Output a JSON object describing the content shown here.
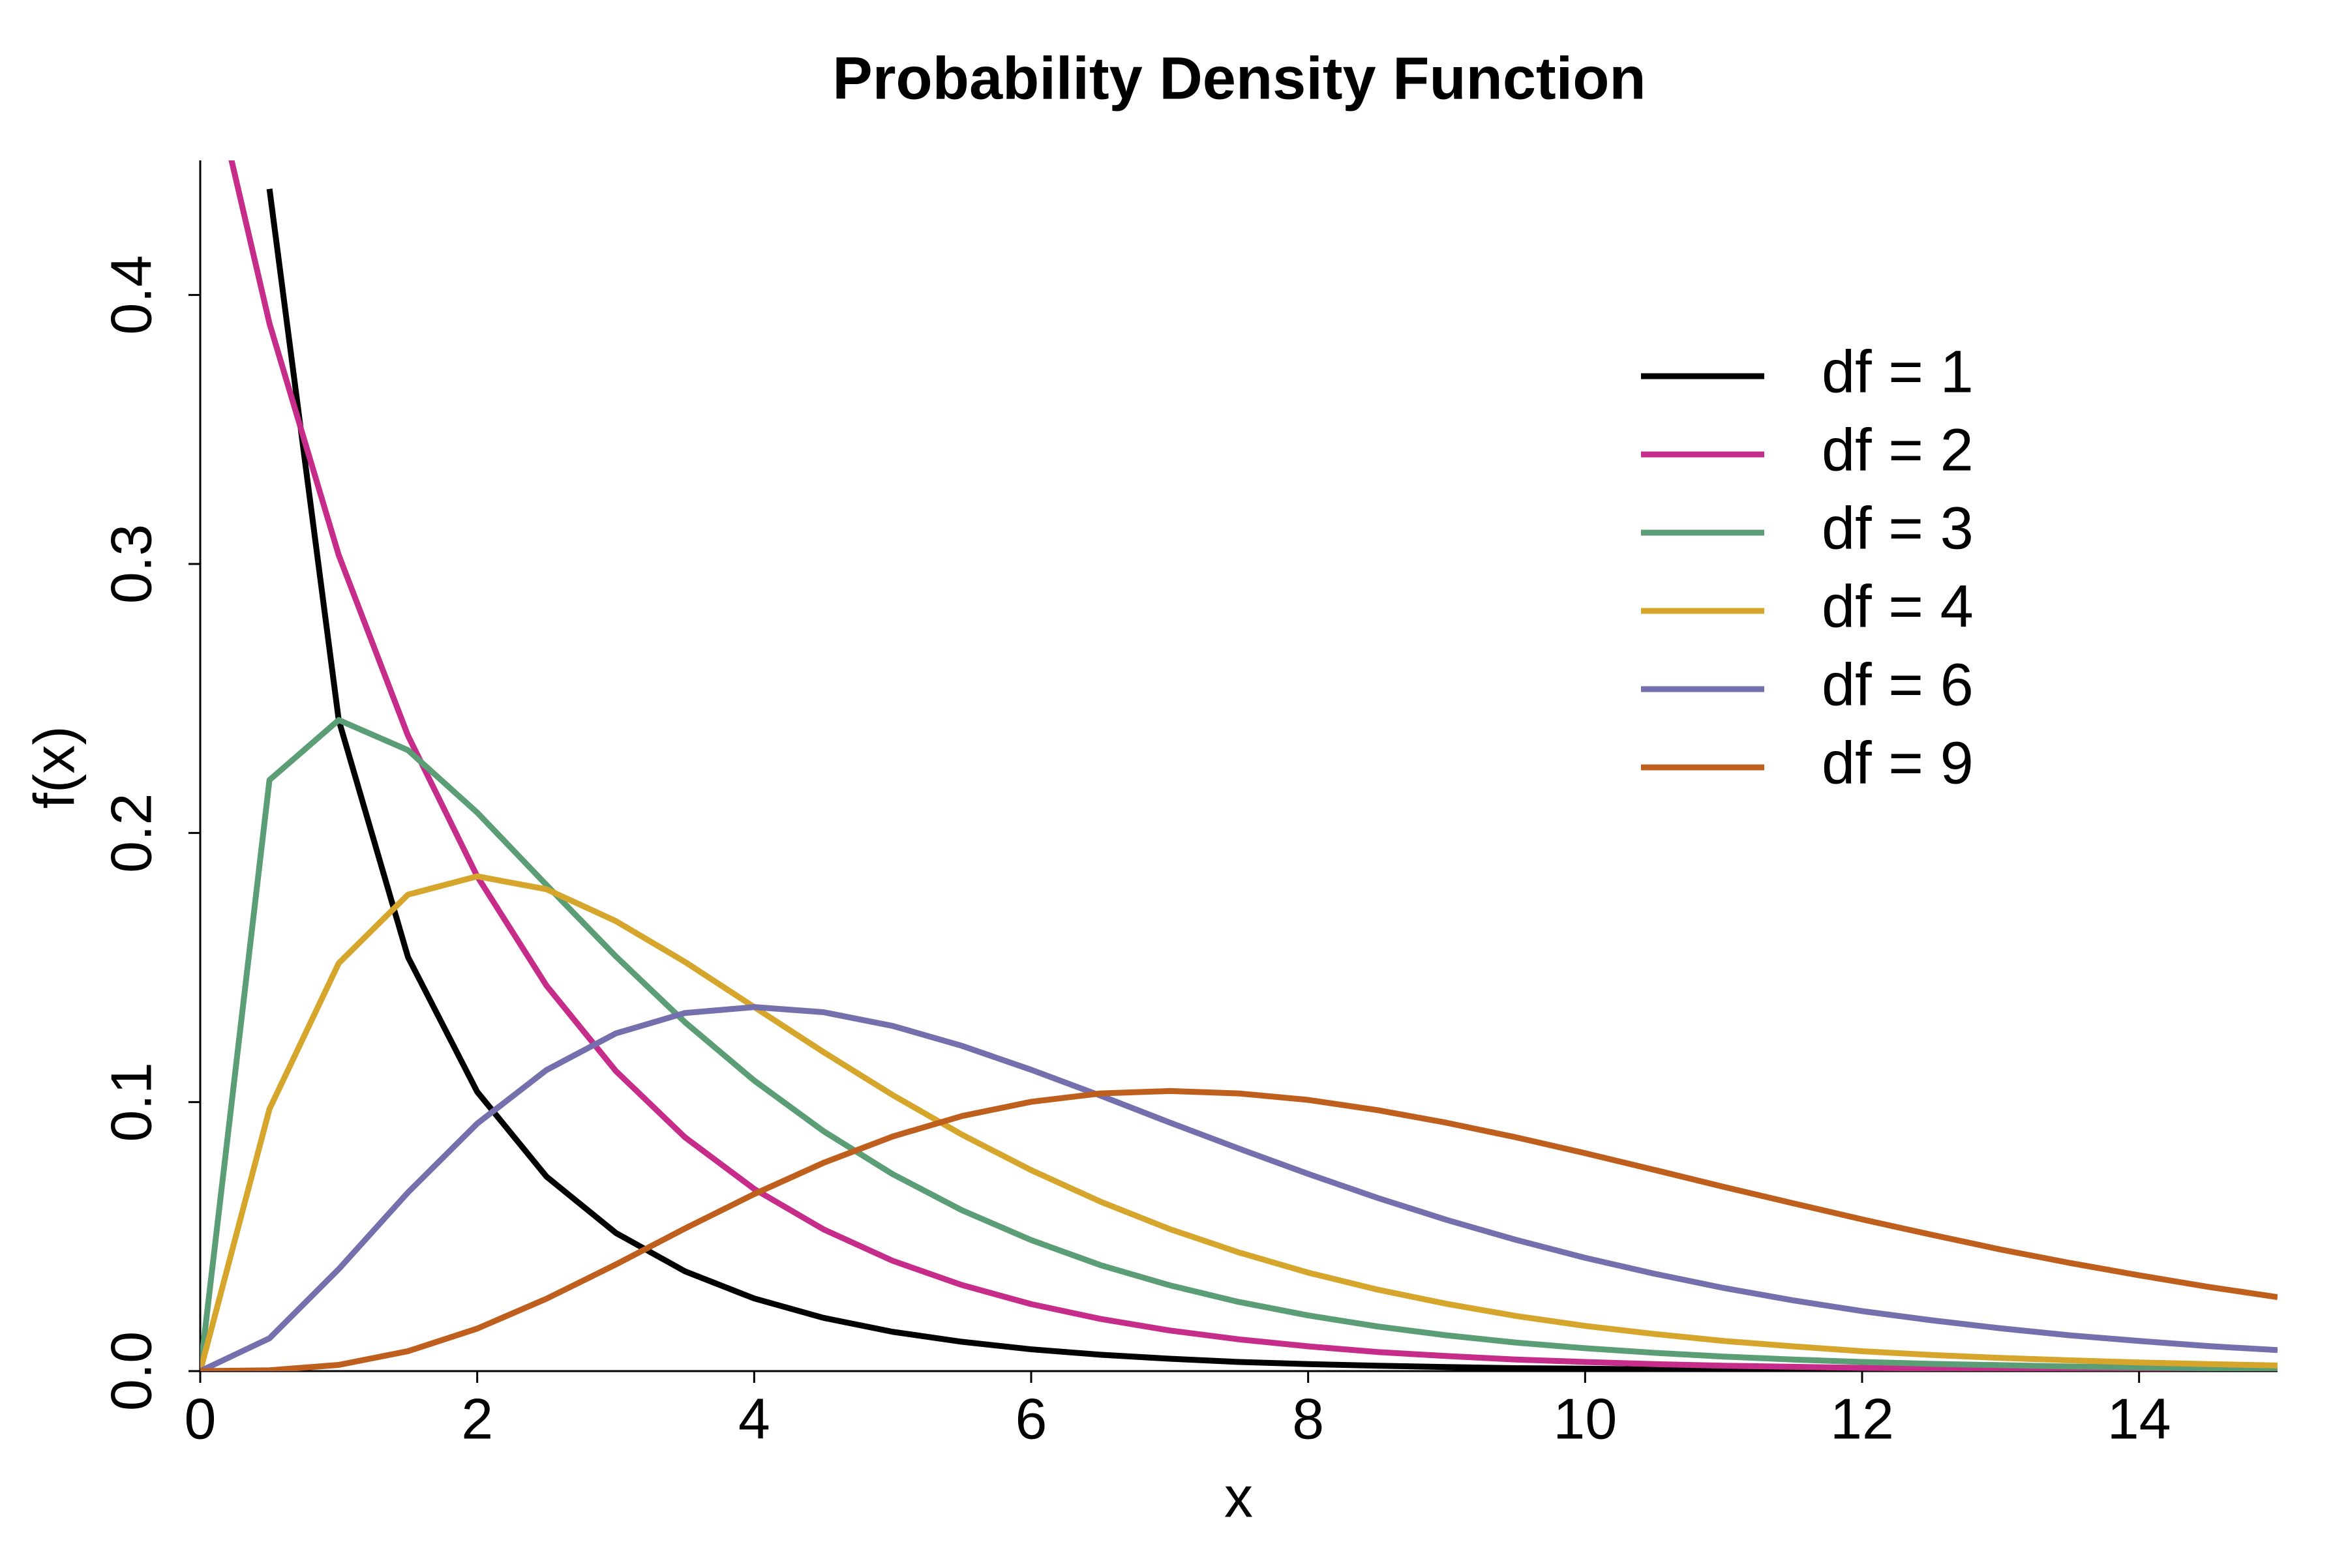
{
  "chart_data": {
    "type": "line",
    "title": "Probability Density Function",
    "x_label": "x",
    "y_label": "f(x)",
    "xlim": [
      0,
      15
    ],
    "ylim": [
      0,
      0.45
    ],
    "xticks": [
      0,
      2,
      4,
      6,
      8,
      10,
      12,
      14
    ],
    "yticks": [
      {
        "value": 0,
        "label": "0.0"
      },
      0.1,
      0.2,
      0.3,
      0.4
    ],
    "legend": "top-right",
    "x": [
      0,
      0.5,
      1,
      1.5,
      2,
      2.5,
      3,
      3.5,
      4,
      4.5,
      5,
      5.5,
      6,
      6.5,
      7,
      7.5,
      8,
      8.5,
      9,
      9.5,
      10,
      10.5,
      11,
      11.5,
      12,
      12.5,
      13,
      13.5,
      14,
      14.5,
      15
    ],
    "series": [
      {
        "name": "df = 1",
        "color": "#000000",
        "values": [
          null,
          0.4394,
          0.242,
          0.1539,
          0.1038,
          0.0723,
          0.0514,
          0.0371,
          0.027,
          0.0198,
          0.0146,
          0.0109,
          0.0081,
          0.0061,
          0.0046,
          0.0034,
          0.0026,
          0.002,
          0.0015,
          0.0011,
          0.0009,
          0.0006,
          0.0005,
          0.0004,
          0.0003,
          0.0002,
          0.0002,
          0.0001,
          0.0001,
          0.0001,
          0.0001
        ]
      },
      {
        "name": "df = 2",
        "color": "#c62d8a",
        "values": [
          0.5,
          0.3894,
          0.3033,
          0.2362,
          0.1839,
          0.1433,
          0.1116,
          0.0869,
          0.0677,
          0.0527,
          0.041,
          0.032,
          0.0249,
          0.0194,
          0.0151,
          0.0118,
          0.0092,
          0.0071,
          0.0056,
          0.0043,
          0.0034,
          0.0026,
          0.002,
          0.0016,
          0.0012,
          0.001,
          0.0008,
          0.0006,
          0.0005,
          0.0004,
          0.0003
        ]
      },
      {
        "name": "df = 3",
        "color": "#5b9e76",
        "values": [
          0,
          0.2197,
          0.242,
          0.2308,
          0.2076,
          0.1807,
          0.1542,
          0.1297,
          0.108,
          0.0892,
          0.0732,
          0.0598,
          0.0487,
          0.0394,
          0.0319,
          0.0257,
          0.0207,
          0.0166,
          0.0133,
          0.0106,
          0.0085,
          0.0068,
          0.0054,
          0.0043,
          0.0034,
          0.0027,
          0.0022,
          0.0017,
          0.0014,
          0.0011,
          0.0009
        ]
      },
      {
        "name": "df = 4",
        "color": "#d6a62c",
        "values": [
          0,
          0.0974,
          0.1516,
          0.1771,
          0.1839,
          0.1791,
          0.1673,
          0.1521,
          0.1353,
          0.1186,
          0.1026,
          0.0879,
          0.0747,
          0.063,
          0.0528,
          0.0441,
          0.0366,
          0.0303,
          0.025,
          0.0205,
          0.0168,
          0.0138,
          0.0112,
          0.0092,
          0.0074,
          0.006,
          0.0049,
          0.004,
          0.0032,
          0.0026,
          0.0021
        ]
      },
      {
        "name": "df = 6",
        "color": "#7470ad",
        "values": [
          0,
          0.0122,
          0.0379,
          0.0664,
          0.092,
          0.1119,
          0.1255,
          0.1331,
          0.1353,
          0.1334,
          0.1283,
          0.1209,
          0.112,
          0.1024,
          0.0924,
          0.0827,
          0.0733,
          0.0644,
          0.0562,
          0.0488,
          0.0421,
          0.0362,
          0.0309,
          0.0263,
          0.0223,
          0.0189,
          0.0159,
          0.0133,
          0.0112,
          0.0093,
          0.0078
        ]
      },
      {
        "name": "df = 9",
        "color": "#bf5f1e",
        "values": [
          0,
          0.0003,
          0.0023,
          0.0074,
          0.0158,
          0.0269,
          0.0396,
          0.053,
          0.0658,
          0.0774,
          0.0872,
          0.0948,
          0.1001,
          0.1032,
          0.1041,
          0.1032,
          0.1008,
          0.097,
          0.0923,
          0.0869,
          0.081,
          0.0748,
          0.0685,
          0.0624,
          0.0564,
          0.0507,
          0.0452,
          0.0402,
          0.0356,
          0.0313,
          0.0275
        ]
      }
    ]
  }
}
